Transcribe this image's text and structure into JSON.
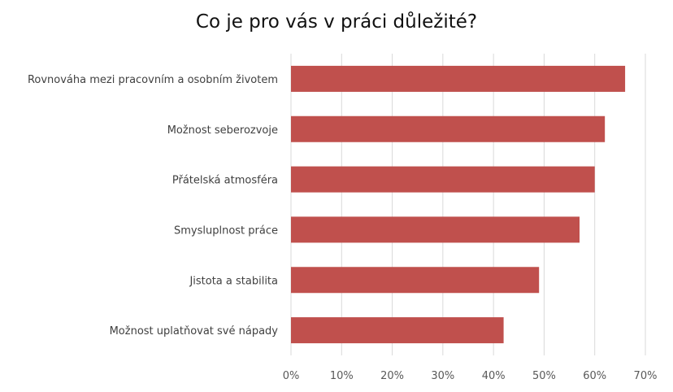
{
  "chart_data": {
    "type": "bar",
    "orientation": "horizontal",
    "title": "Co je pro vás v práci důležité?",
    "xlabel": "",
    "ylabel": "",
    "categories": [
      "Rovnováha mezi pracovním a osobním životem",
      "Možnost seberozvoje",
      "Přátelská atmosféra",
      "Smysluplnost práce",
      "Jistota a stabilita",
      "Možnost uplatňovat své nápady"
    ],
    "values": [
      66,
      62,
      60,
      57,
      49,
      42
    ],
    "value_unit": "%",
    "xlim": [
      0,
      70
    ],
    "ticks": [
      "0%",
      "10%",
      "20%",
      "30%",
      "40%",
      "50%",
      "60%",
      "70%"
    ],
    "tick_values": [
      0,
      10,
      20,
      30,
      40,
      50,
      60,
      70
    ],
    "grid": true,
    "legend": "none",
    "bar_color": "#C0504D",
    "grid_color": "#D9D9D9"
  }
}
